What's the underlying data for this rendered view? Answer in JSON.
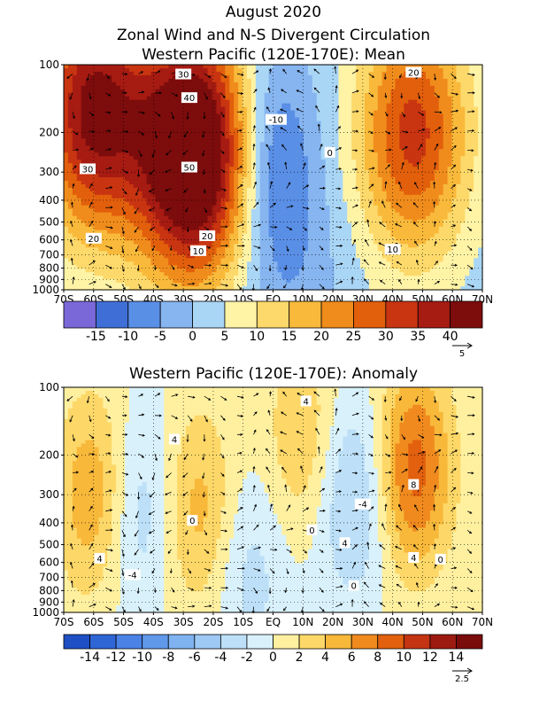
{
  "figure": {
    "title_line1": "August 2020",
    "title_line2": "Zonal Wind and N-S Divergent Circulation"
  },
  "chart_data": [
    {
      "type": "heatmap",
      "title": "Western Pacific (120E-170E): Mean",
      "xlabel": "",
      "ylabel": "",
      "x_ticks": [
        "70S",
        "60S",
        "50S",
        "40S",
        "30S",
        "20S",
        "10S",
        "EQ",
        "10N",
        "20N",
        "30N",
        "40N",
        "50N",
        "60N",
        "70N"
      ],
      "x_values": [
        -70,
        -60,
        -50,
        -40,
        -30,
        -20,
        -10,
        0,
        10,
        20,
        30,
        40,
        50,
        60,
        70
      ],
      "xlim": [
        -70,
        70
      ],
      "y_ticks": [
        "100",
        "200",
        "300",
        "400",
        "500",
        "600",
        "700",
        "800",
        "900",
        "1000"
      ],
      "y_values": [
        100,
        200,
        300,
        400,
        500,
        600,
        700,
        800,
        900,
        1000
      ],
      "ylim": [
        1000,
        100
      ],
      "y_scale": "log",
      "colorbar": {
        "labels": [
          "-15",
          "-10",
          "-5",
          "0",
          "5",
          "10",
          "15",
          "20",
          "25",
          "30",
          "35",
          "40"
        ],
        "levels": [
          -15,
          -10,
          -5,
          0,
          5,
          10,
          15,
          20,
          25,
          30,
          35,
          40
        ],
        "colors": [
          "#7b68d8",
          "#3f6fd6",
          "#5a8fe6",
          "#86b5f0",
          "#aad6f6",
          "#fff3a6",
          "#fdd96b",
          "#f9b93a",
          "#f08c1c",
          "#e25f0c",
          "#c93411",
          "#a61b12",
          "#7d0c0c"
        ]
      },
      "contour_labels": [
        "30",
        "40",
        "50",
        "30",
        "20",
        "20",
        "10",
        "20",
        "-10",
        "0",
        "10"
      ],
      "vector_reference": "5",
      "features": [
        {
          "kind": "jet",
          "lat": -60,
          "plev": 160,
          "value": 40
        },
        {
          "kind": "jet",
          "lat": -27,
          "plev": 250,
          "value": 55
        },
        {
          "kind": "jet",
          "lat": 47,
          "plev": 200,
          "value": 30
        },
        {
          "kind": "easterly",
          "lat": 0,
          "plev": 250,
          "value": -12
        }
      ]
    },
    {
      "type": "heatmap",
      "title": "Western Pacific (120E-170E): Anomaly",
      "xlabel": "",
      "ylabel": "",
      "x_ticks": [
        "70S",
        "60S",
        "50S",
        "40S",
        "30S",
        "20S",
        "10S",
        "EQ",
        "10N",
        "20N",
        "30N",
        "40N",
        "50N",
        "60N",
        "70N"
      ],
      "x_values": [
        -70,
        -60,
        -50,
        -40,
        -30,
        -20,
        -10,
        0,
        10,
        20,
        30,
        40,
        50,
        60,
        70
      ],
      "xlim": [
        -70,
        70
      ],
      "y_ticks": [
        "100",
        "200",
        "300",
        "400",
        "500",
        "600",
        "700",
        "800",
        "900",
        "1000"
      ],
      "y_values": [
        100,
        200,
        300,
        400,
        500,
        600,
        700,
        800,
        900,
        1000
      ],
      "ylim": [
        1000,
        100
      ],
      "y_scale": "log",
      "colorbar": {
        "labels": [
          "-14",
          "-12",
          "-10",
          "-8",
          "-6",
          "-4",
          "-2",
          "0",
          "2",
          "4",
          "6",
          "8",
          "10",
          "12",
          "14"
        ],
        "levels": [
          -14,
          -12,
          -10,
          -8,
          -6,
          -4,
          -2,
          0,
          2,
          4,
          6,
          8,
          10,
          12,
          14
        ],
        "colors": [
          "#1e4fc4",
          "#2f66d6",
          "#4a82e6",
          "#6199ea",
          "#7fb2f0",
          "#9dc9f4",
          "#bde0f8",
          "#d9f1fb",
          "#fff0a0",
          "#fdd868",
          "#f8b83a",
          "#f08a1e",
          "#e2600e",
          "#c43412",
          "#9d1a10",
          "#7a0c0c"
        ]
      },
      "contour_labels": [
        "4",
        "4",
        "0",
        "4",
        "8",
        "-4",
        "4",
        "0",
        "0",
        "-4",
        "0",
        "4"
      ],
      "vector_reference": "2.5",
      "features": [
        {
          "kind": "positive",
          "lat": 47,
          "plev": 230,
          "value": 9
        },
        {
          "kind": "positive",
          "lat": -60,
          "plev": 300,
          "value": 6
        },
        {
          "kind": "positive",
          "lat": -25,
          "plev": 350,
          "value": 5
        },
        {
          "kind": "positive",
          "lat": 10,
          "plev": 170,
          "value": 4
        },
        {
          "kind": "negative",
          "lat": 27,
          "plev": 300,
          "value": -5
        },
        {
          "kind": "negative",
          "lat": -45,
          "plev": 350,
          "value": -4
        },
        {
          "kind": "negative",
          "lat": -8,
          "plev": 650,
          "value": -3
        }
      ]
    }
  ]
}
